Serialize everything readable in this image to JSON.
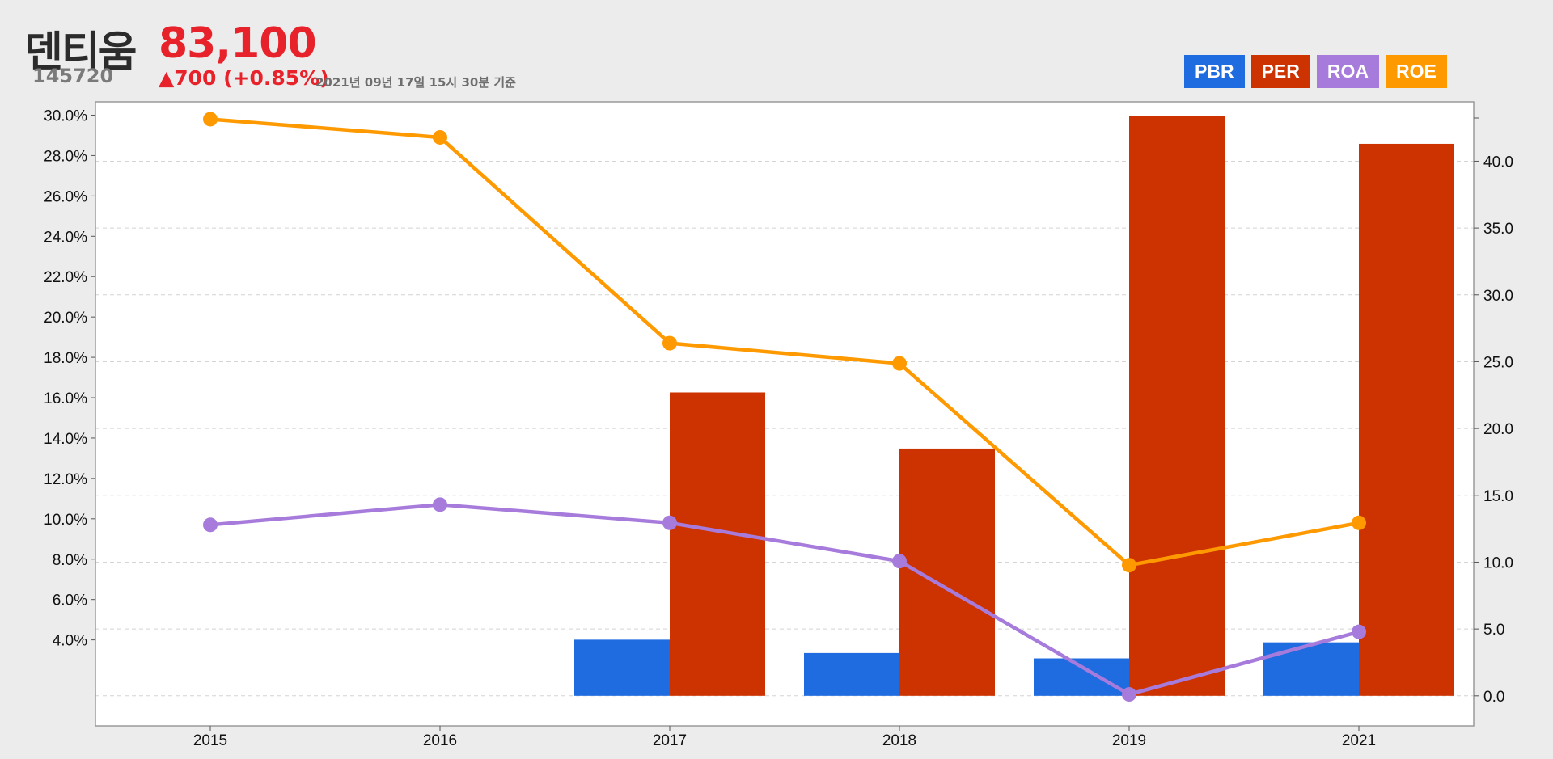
{
  "header": {
    "company": "덴티움",
    "code": "145720",
    "price": "83,100",
    "change": "▲700 (+0.85%)",
    "asof": "2021년 09년 17일 15시 30분 기준"
  },
  "legend": [
    {
      "label": "PBR",
      "color": "#1f6be0"
    },
    {
      "label": "PER",
      "color": "#cc3300"
    },
    {
      "label": "ROA",
      "color": "#a77bdb"
    },
    {
      "label": "ROE",
      "color": "#ff9900"
    }
  ],
  "chart_data": {
    "type": "bar",
    "categories": [
      "2015",
      "2016",
      "2017",
      "2018",
      "2019",
      "2021"
    ],
    "left_axis": {
      "ylim": [
        0.5,
        30.5
      ],
      "ticks": [
        "30.0%",
        "28.0%",
        "26.0%",
        "24.0%",
        "22.0%",
        "20.0%",
        "18.0%",
        "16.0%",
        "14.0%",
        "12.0%",
        "10.0%",
        "8.0%",
        "6.0%",
        "4.0%"
      ],
      "tick_values": [
        30,
        28,
        26,
        24,
        22,
        20,
        18,
        16,
        14,
        12,
        10,
        8,
        6,
        4
      ]
    },
    "right_axis": {
      "ylim": [
        -1.1,
        44.2
      ],
      "ticks": [
        "40.0",
        "35.0",
        "30.0",
        "25.0",
        "20.0",
        "15.0",
        "10.0",
        "5.0",
        "0.0"
      ],
      "tick_values": [
        40,
        35,
        30,
        25,
        20,
        15,
        10,
        5,
        0
      ]
    },
    "series": [
      {
        "name": "PBR",
        "type": "bar",
        "axis": "right",
        "color": "#1f6be0",
        "values": [
          null,
          null,
          4.2,
          3.2,
          2.8,
          4.0
        ]
      },
      {
        "name": "PER",
        "type": "bar",
        "axis": "right",
        "color": "#cc3300",
        "values": [
          null,
          null,
          22.7,
          18.5,
          43.4,
          41.3
        ]
      },
      {
        "name": "ROA",
        "type": "line",
        "axis": "left",
        "color": "#a77bdb",
        "values": [
          9.7,
          10.7,
          9.8,
          7.9,
          1.3,
          4.4
        ]
      },
      {
        "name": "ROE",
        "type": "line",
        "axis": "left",
        "color": "#ff9900",
        "values": [
          29.8,
          28.9,
          18.7,
          17.7,
          7.7,
          9.8
        ]
      }
    ],
    "grid": true
  }
}
